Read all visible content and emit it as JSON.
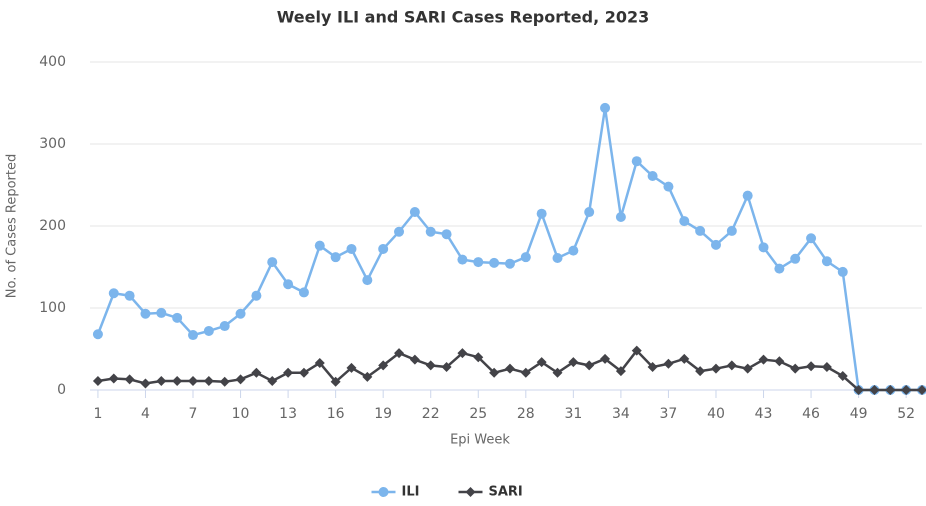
{
  "chart_data": {
    "type": "line",
    "title": "Weely ILI and SARI Cases Reported, 2023",
    "x_label": "Epi Week",
    "y_label": "No. of Cases Reported",
    "x": [
      1,
      2,
      3,
      4,
      5,
      6,
      7,
      8,
      9,
      10,
      11,
      12,
      13,
      14,
      15,
      16,
      17,
      18,
      19,
      20,
      21,
      22,
      23,
      24,
      25,
      26,
      27,
      28,
      29,
      30,
      31,
      32,
      33,
      34,
      35,
      36,
      37,
      38,
      39,
      40,
      41,
      42,
      43,
      44,
      45,
      46,
      47,
      48,
      49,
      50,
      51,
      52,
      53
    ],
    "series": [
      {
        "name": "ILI",
        "color": "#7cb5ec",
        "marker": "circle",
        "values": [
          68,
          118,
          115,
          93,
          94,
          88,
          67,
          72,
          78,
          93,
          115,
          156,
          129,
          119,
          176,
          162,
          172,
          134,
          172,
          193,
          217,
          193,
          190,
          159,
          156,
          155,
          154,
          162,
          215,
          161,
          170,
          217,
          344,
          211,
          279,
          261,
          248,
          206,
          194,
          177,
          194,
          237,
          174,
          148,
          160,
          185,
          157,
          144,
          0,
          0,
          0,
          0,
          0
        ]
      },
      {
        "name": "SARI",
        "color": "#434348",
        "marker": "diamond",
        "values": [
          11,
          14,
          13,
          8,
          11,
          11,
          11,
          11,
          10,
          13,
          21,
          11,
          21,
          21,
          33,
          10,
          27,
          16,
          30,
          45,
          37,
          30,
          28,
          45,
          40,
          21,
          26,
          21,
          34,
          21,
          34,
          30,
          38,
          23,
          48,
          28,
          32,
          38,
          23,
          26,
          30,
          26,
          37,
          35,
          26,
          29,
          28,
          17,
          0,
          0,
          0,
          0,
          0
        ]
      }
    ],
    "xlim": [
      0.5,
      53
    ],
    "xticks": [
      1,
      4,
      7,
      10,
      13,
      16,
      19,
      22,
      25,
      28,
      31,
      34,
      37,
      40,
      43,
      46,
      49,
      52
    ],
    "ylim": [
      0,
      400
    ],
    "yticks": [
      0,
      100,
      200,
      300,
      400
    ],
    "grid": true,
    "legend": "bottom"
  }
}
